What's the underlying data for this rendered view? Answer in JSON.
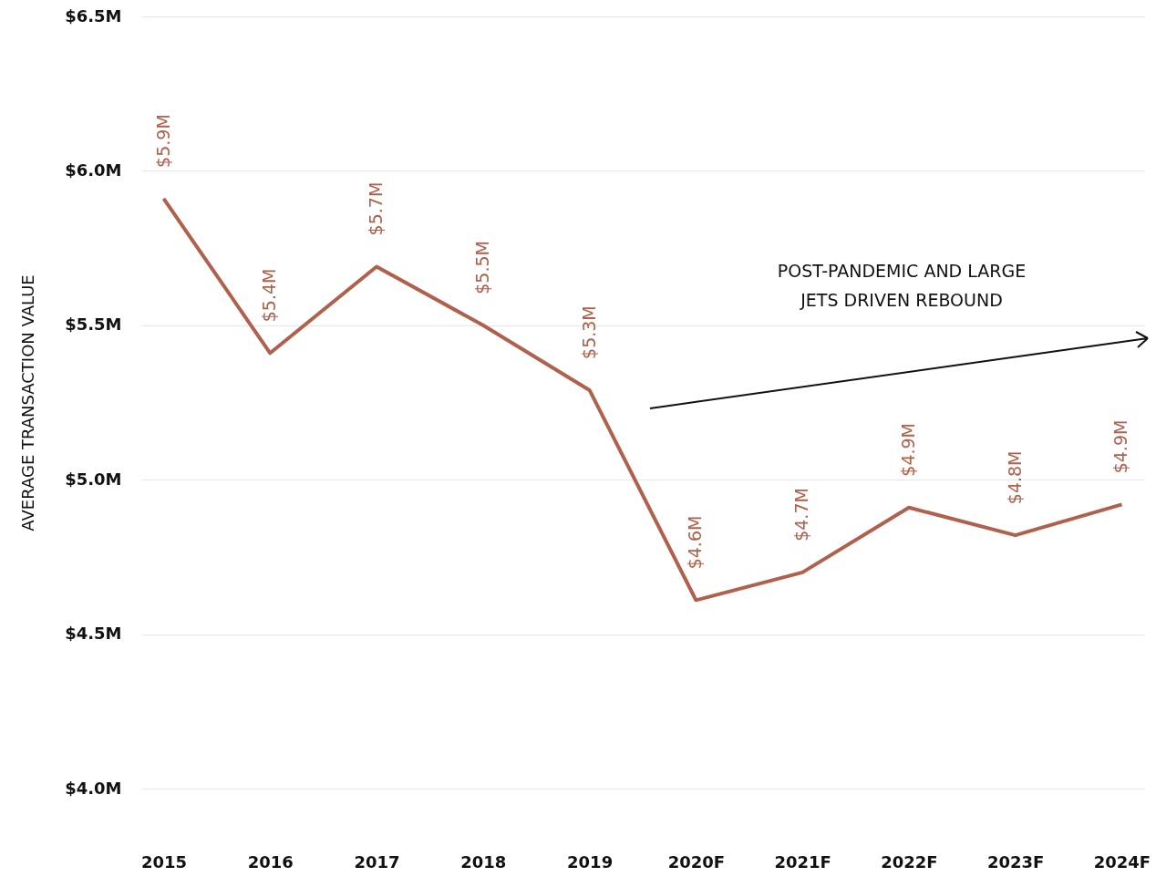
{
  "chart_data": {
    "type": "line",
    "ylabel": "AVERAGE TRANSACTION VALUE",
    "categories": [
      "2015",
      "2016",
      "2017",
      "2018",
      "2019",
      "2020F",
      "2021F",
      "2022F",
      "2023F",
      "2024F"
    ],
    "series": [
      {
        "color": "#b0604b",
        "values": [
          5.91,
          5.41,
          5.69,
          5.5,
          5.29,
          4.61,
          4.7,
          4.91,
          4.82,
          4.92
        ],
        "value_labels": [
          "$5.9M",
          "$5.4M",
          "$5.7M",
          "$5.5M",
          "$5.3M",
          "$4.6M",
          "$4.7M",
          "$4.9M",
          "$4.8M",
          "$4.9M"
        ]
      }
    ],
    "ylim": [
      4.0,
      6.5
    ],
    "yticks": [
      {
        "value": 4.0,
        "label": "$4.0M"
      },
      {
        "value": 4.5,
        "label": "$4.5M"
      },
      {
        "value": 5.0,
        "label": "$5.0M"
      },
      {
        "value": 5.5,
        "label": "$5.5M"
      },
      {
        "value": 6.0,
        "label": "$6.0M"
      },
      {
        "value": 6.5,
        "label": "$6.5M"
      }
    ],
    "grid": "y",
    "marker": "none",
    "line_style": "solid",
    "annotations": [
      "POST-PANDEMIC AND LARGE\nJETS DRIVEN REBOUND"
    ]
  }
}
